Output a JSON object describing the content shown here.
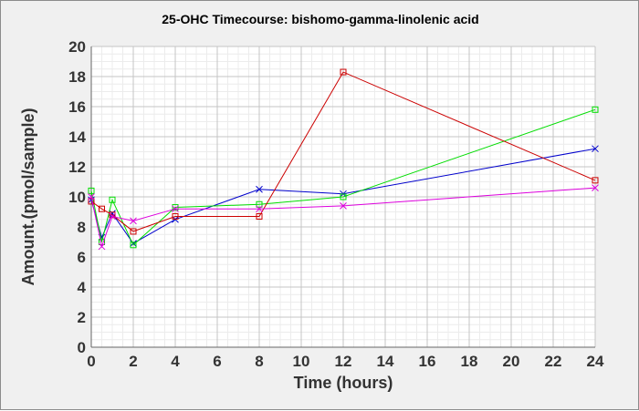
{
  "chart_data": {
    "type": "line",
    "title": "25-OHC Timecourse: bishomo-gamma-linolenic acid",
    "xlabel": "Time (hours)",
    "ylabel": "Amount.(pmol/sample)",
    "xlim": [
      0,
      24
    ],
    "ylim": [
      0,
      20
    ],
    "xticks": [
      0,
      2,
      4,
      6,
      8,
      10,
      12,
      14,
      16,
      18,
      20,
      22,
      24
    ],
    "yticks": [
      0,
      2,
      4,
      6,
      8,
      10,
      12,
      14,
      16,
      18,
      20
    ],
    "grid": true,
    "legend": "none",
    "series": [
      {
        "color": "#0000cc",
        "marker": "x",
        "points": [
          [
            0,
            9.8
          ],
          [
            0.5,
            7.3
          ],
          [
            1,
            8.9
          ],
          [
            2,
            6.9
          ],
          [
            4,
            8.5
          ],
          [
            8,
            10.5
          ],
          [
            12,
            10.2
          ],
          [
            24,
            13.2
          ]
        ]
      },
      {
        "color": "#00dd00",
        "marker": "square",
        "points": [
          [
            0,
            10.4
          ],
          [
            0.5,
            7.0
          ],
          [
            1,
            9.8
          ],
          [
            2,
            6.8
          ],
          [
            4,
            9.3
          ],
          [
            8,
            9.5
          ],
          [
            12,
            10.0
          ],
          [
            24,
            15.8
          ]
        ]
      },
      {
        "color": "#cc0000",
        "marker": "square",
        "points": [
          [
            0,
            9.7
          ],
          [
            0.5,
            9.2
          ],
          [
            1,
            8.8
          ],
          [
            2,
            7.7
          ],
          [
            4,
            8.7
          ],
          [
            8,
            8.7
          ],
          [
            12,
            18.3
          ],
          [
            24,
            11.1
          ]
        ]
      },
      {
        "color": "#dd00dd",
        "marker": "x",
        "points": [
          [
            0,
            10.0
          ],
          [
            0.5,
            6.7
          ],
          [
            1,
            8.7
          ],
          [
            2,
            8.4
          ],
          [
            4,
            9.2
          ],
          [
            8,
            9.2
          ],
          [
            12,
            9.4
          ],
          [
            24,
            10.6
          ]
        ]
      }
    ]
  }
}
